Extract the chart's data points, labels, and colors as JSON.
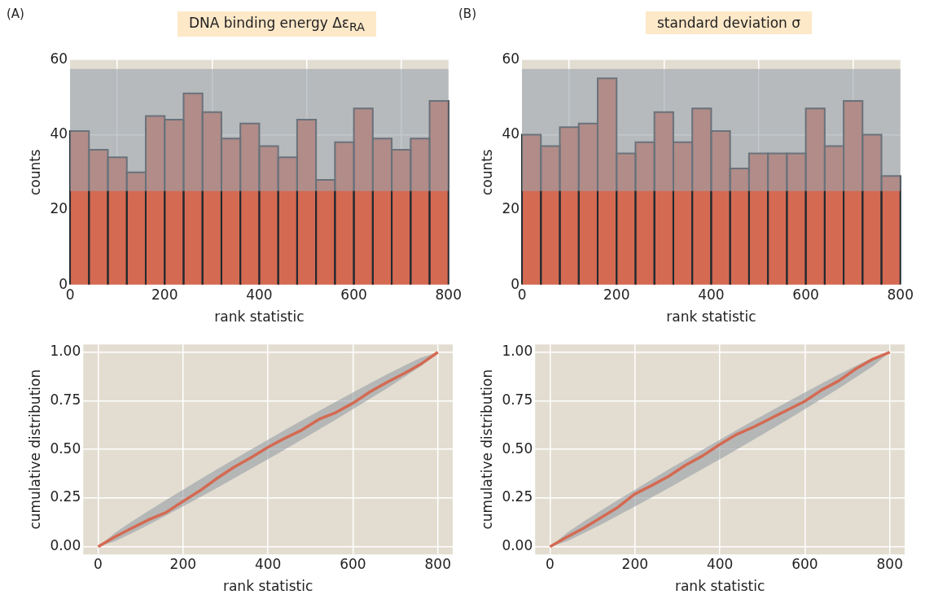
{
  "chart_data": [
    {
      "type": "histogram",
      "title": "DNA binding energy Δε$_{RA}$",
      "xlabel": "rank statistic",
      "ylabel": "counts",
      "annotations": [
        "(A)"
      ],
      "bins": [
        0,
        40,
        80,
        120,
        160,
        200,
        240,
        280,
        320,
        360,
        400,
        440,
        480,
        520,
        560,
        600,
        640,
        680,
        720,
        760,
        800
      ],
      "values": [
        41,
        36,
        34,
        30,
        45,
        44,
        51,
        46,
        39,
        43,
        37,
        34,
        44,
        28,
        38,
        47,
        39,
        36,
        39,
        49
      ],
      "color": "#d46a52",
      "xlim": [
        0,
        800
      ],
      "ylim": [
        0,
        60
      ],
      "xticks": [
        0,
        200,
        400,
        600,
        800
      ],
      "yticks": [
        0,
        20,
        40,
        60
      ],
      "grid": true,
      "bands": [
        {
          "axis": "y",
          "from": 25,
          "to": 57.5,
          "color": "#99a3ad"
        }
      ]
    },
    {
      "type": "histogram",
      "title": "standard deviation σ",
      "xlabel": "rank statistic",
      "ylabel": "counts",
      "annotations": [
        "(B)"
      ],
      "bins": [
        0,
        40,
        80,
        120,
        160,
        200,
        240,
        280,
        320,
        360,
        400,
        440,
        480,
        520,
        560,
        600,
        640,
        680,
        720,
        760,
        800
      ],
      "values": [
        40,
        37,
        42,
        43,
        55,
        35,
        38,
        46,
        38,
        47,
        41,
        31,
        35,
        35,
        35,
        47,
        37,
        49,
        40,
        29
      ],
      "color": "#d46a52",
      "xlim": [
        0,
        800
      ],
      "ylim": [
        0,
        60
      ],
      "xticks": [
        0,
        200,
        400,
        600,
        800
      ],
      "yticks": [
        0,
        20,
        40,
        60
      ],
      "grid": true,
      "bands": [
        {
          "axis": "y",
          "from": 25,
          "to": 57.5,
          "color": "#99a3ad"
        }
      ]
    },
    {
      "type": "line",
      "xlabel": "rank statistic",
      "ylabel": "cumulative distribution",
      "xlim": [
        -35,
        835
      ],
      "ylim": [
        -0.04,
        1.04
      ],
      "xticks": [
        0,
        200,
        400,
        600,
        800
      ],
      "yticks": [
        {
          "value": 0,
          "label": "0.00"
        },
        {
          "value": 0.25,
          "label": "0.25"
        },
        {
          "value": 0.5,
          "label": "0.50"
        },
        {
          "value": 0.75,
          "label": "0.75"
        },
        {
          "value": 1,
          "label": "1.00"
        }
      ],
      "grid": true,
      "marker": "none",
      "series": [
        {
          "color": "#d46a52",
          "x": [
            0,
            40,
            80,
            120,
            160,
            200,
            240,
            280,
            320,
            360,
            400,
            440,
            480,
            520,
            560,
            600,
            640,
            680,
            720,
            760,
            800
          ],
          "values": [
            0,
            0.051,
            0.096,
            0.139,
            0.176,
            0.233,
            0.288,
            0.351,
            0.409,
            0.458,
            0.511,
            0.558,
            0.6,
            0.655,
            0.69,
            0.738,
            0.796,
            0.845,
            0.89,
            0.939,
            1
          ],
          "lower": [
            0,
            0.028,
            0.07,
            0.114,
            0.16,
            0.207,
            0.254,
            0.302,
            0.351,
            0.4,
            0.45,
            0.5,
            0.551,
            0.602,
            0.654,
            0.707,
            0.76,
            0.814,
            0.87,
            0.928,
            1
          ],
          "upper": [
            0,
            0.072,
            0.13,
            0.186,
            0.24,
            0.293,
            0.346,
            0.398,
            0.449,
            0.5,
            0.55,
            0.6,
            0.649,
            0.698,
            0.746,
            0.793,
            0.84,
            0.886,
            0.93,
            0.972,
            1
          ]
        }
      ]
    },
    {
      "type": "line",
      "xlabel": "rank statistic",
      "ylabel": "cumulative distribution",
      "xlim": [
        -35,
        835
      ],
      "ylim": [
        -0.04,
        1.04
      ],
      "xticks": [
        0,
        200,
        400,
        600,
        800
      ],
      "yticks": [
        {
          "value": 0,
          "label": "0.00"
        },
        {
          "value": 0.25,
          "label": "0.25"
        },
        {
          "value": 0.5,
          "label": "0.50"
        },
        {
          "value": 0.75,
          "label": "0.75"
        },
        {
          "value": 1,
          "label": "1.00"
        }
      ],
      "grid": true,
      "marker": "none",
      "series": [
        {
          "color": "#d46a52",
          "x": [
            0,
            40,
            80,
            120,
            160,
            200,
            240,
            280,
            320,
            360,
            400,
            440,
            480,
            520,
            560,
            600,
            640,
            680,
            720,
            760,
            800
          ],
          "values": [
            0,
            0.05,
            0.096,
            0.149,
            0.203,
            0.271,
            0.315,
            0.363,
            0.42,
            0.468,
            0.526,
            0.578,
            0.616,
            0.66,
            0.704,
            0.748,
            0.806,
            0.853,
            0.914,
            0.964,
            1
          ],
          "lower": [
            0,
            0.028,
            0.07,
            0.114,
            0.16,
            0.207,
            0.254,
            0.302,
            0.351,
            0.4,
            0.45,
            0.5,
            0.551,
            0.602,
            0.654,
            0.707,
            0.76,
            0.814,
            0.87,
            0.928,
            1
          ],
          "upper": [
            0,
            0.072,
            0.13,
            0.186,
            0.24,
            0.293,
            0.346,
            0.398,
            0.449,
            0.5,
            0.55,
            0.6,
            0.649,
            0.698,
            0.746,
            0.793,
            0.84,
            0.886,
            0.93,
            0.972,
            1
          ]
        }
      ]
    }
  ]
}
